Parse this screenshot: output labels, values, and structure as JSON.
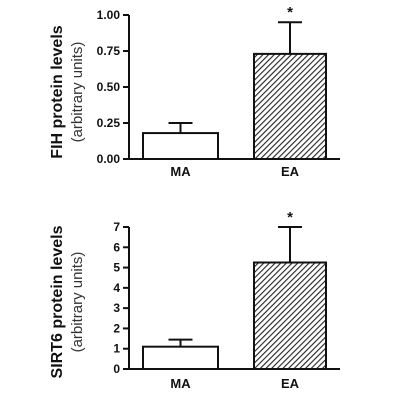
{
  "chart_data": [
    {
      "type": "bar",
      "ylabel": "FIH protein levels",
      "ylabel_sub": "(arbitrary units)",
      "categories": [
        "MA",
        "EA"
      ],
      "values": [
        0.18,
        0.73
      ],
      "errors": [
        0.07,
        0.22
      ],
      "annotations": [
        "",
        "*"
      ],
      "ylim": [
        0,
        1.0
      ],
      "yticks": [
        "0.00",
        "0.25",
        "0.50",
        "0.75",
        "1.00"
      ],
      "bar_styles": [
        "open",
        "hatched"
      ]
    },
    {
      "type": "bar",
      "ylabel": "SIRT6 protein levels",
      "ylabel_sub": "(arbitrary units)",
      "categories": [
        "MA",
        "EA"
      ],
      "values": [
        1.1,
        5.25
      ],
      "errors": [
        0.35,
        1.75
      ],
      "annotations": [
        "",
        "*"
      ],
      "ylim": [
        0,
        7
      ],
      "yticks": [
        "0",
        "1",
        "2",
        "3",
        "4",
        "5",
        "6",
        "7"
      ],
      "bar_styles": [
        "open",
        "hatched"
      ]
    }
  ]
}
